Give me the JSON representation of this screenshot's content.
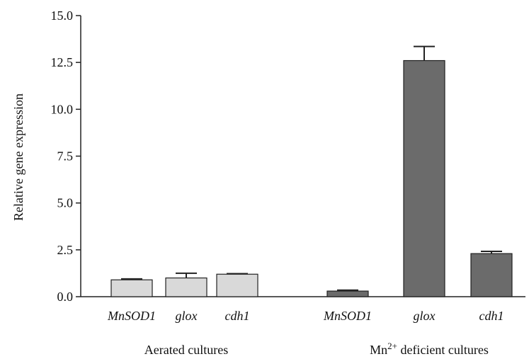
{
  "chart_data": {
    "type": "bar",
    "title": "",
    "ylabel": "Relative gene expression",
    "xlabel": "",
    "ylim": [
      0,
      15
    ],
    "yticks": [
      "0.0",
      "2.5",
      "5.0",
      "7.5",
      "10.0",
      "12.5",
      "15.0"
    ],
    "grid": false,
    "groups": [
      {
        "label_prefix": "Aerated cultures",
        "label_sup": "",
        "label_suffix": "",
        "color": "#d9d9d9",
        "bars": [
          {
            "category": "MnSOD1",
            "value": 0.9,
            "error": 0.05
          },
          {
            "category": "glox",
            "value": 1.0,
            "error": 0.25
          },
          {
            "category": "cdh1",
            "value": 1.2,
            "error": 0.03
          }
        ]
      },
      {
        "label_prefix": "Mn",
        "label_sup": "2+",
        "label_suffix": " deficient cultures",
        "color": "#6b6b6b",
        "bars": [
          {
            "category": "MnSOD1",
            "value": 0.3,
            "error": 0.05
          },
          {
            "category": "glox",
            "value": 12.6,
            "error": 0.75
          },
          {
            "category": "cdh1",
            "value": 2.3,
            "error": 0.12
          }
        ]
      }
    ]
  }
}
